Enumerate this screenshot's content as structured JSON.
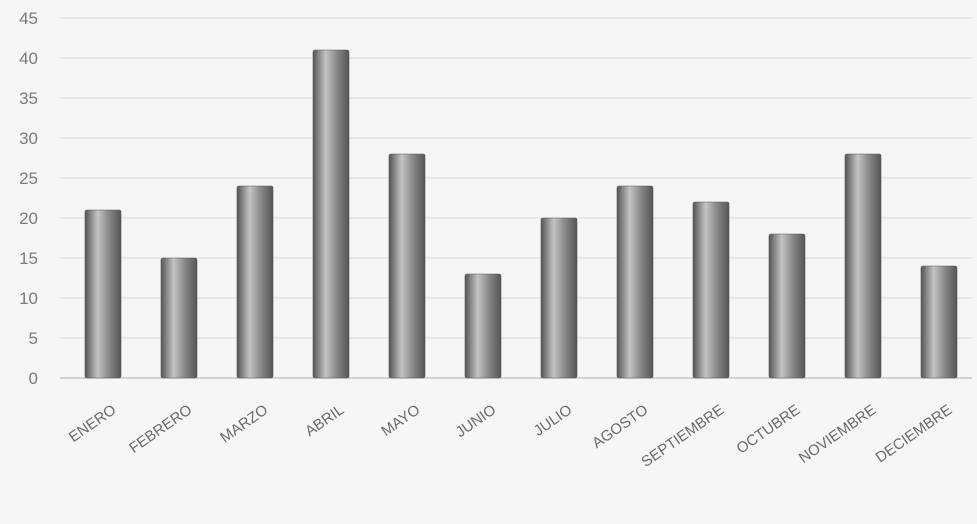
{
  "chart_data": {
    "type": "bar",
    "categories": [
      "ENERO",
      "FEBRERO",
      "MARZO",
      "ABRIL",
      "MAYO",
      "JUNIO",
      "JULIO",
      "AGOSTO",
      "SEPTIEMBRE",
      "OCTUBRE",
      "NOVIEMBRE",
      "DECIEMBRE"
    ],
    "values": [
      21,
      15,
      24,
      41,
      28,
      13,
      20,
      24,
      22,
      18,
      28,
      14
    ],
    "yticks": [
      0,
      5,
      10,
      15,
      20,
      25,
      30,
      35,
      40,
      45
    ],
    "ylim": [
      0,
      45
    ],
    "grid": true,
    "legend": "none",
    "bar_color": "#8a8a8a",
    "bar_highlight": "#c4c4c4",
    "bar_shadow": "#555555"
  }
}
